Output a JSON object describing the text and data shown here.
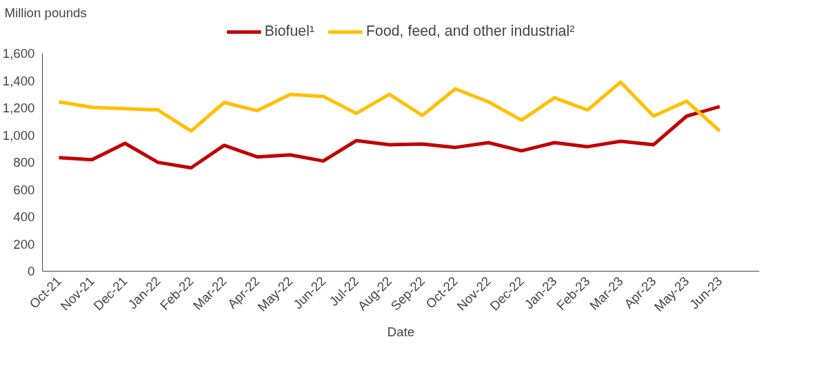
{
  "chart_data": {
    "type": "line",
    "xlabel": "Date",
    "ylabel": "Million pounds",
    "categories": [
      "Oct-21",
      "Nov-21",
      "Dec-21",
      "Jan-22",
      "Feb-22",
      "Mar-22",
      "Apr-22",
      "May-22",
      "Jun-22",
      "Jul-22",
      "Aug-22",
      "Sep-22",
      "Oct-22",
      "Nov-22",
      "Dec-22",
      "Jan-23",
      "Feb-23",
      "Mar-23",
      "Apr-23",
      "May-23",
      "Jun-23"
    ],
    "series": [
      {
        "name": "Biofuel¹",
        "color": "#c00000",
        "values": [
          835,
          820,
          940,
          800,
          760,
          925,
          840,
          855,
          810,
          960,
          930,
          935,
          910,
          945,
          885,
          945,
          915,
          955,
          930,
          1140,
          1210
        ]
      },
      {
        "name": "Food, feed, and other industrial²",
        "color": "#ffc000",
        "values": [
          1245,
          1205,
          1195,
          1185,
          1030,
          1240,
          1180,
          1300,
          1285,
          1160,
          1300,
          1145,
          1340,
          1245,
          1110,
          1275,
          1185,
          1390,
          1140,
          1250,
          1030
        ]
      }
    ],
    "ylim": [
      0,
      1600
    ],
    "yticks": [
      {
        "value": 0,
        "label": "0"
      },
      {
        "value": 200,
        "label": "200"
      },
      {
        "value": 400,
        "label": "400"
      },
      {
        "value": 600,
        "label": "600"
      },
      {
        "value": 800,
        "label": "800"
      },
      {
        "value": 1000,
        "label": "1,000"
      },
      {
        "value": 1200,
        "label": "1,200"
      },
      {
        "value": 1400,
        "label": "1,400"
      },
      {
        "value": 1600,
        "label": "1,600"
      }
    ],
    "grid": false,
    "legend": "top",
    "marker": "none",
    "line_style": "solid"
  }
}
